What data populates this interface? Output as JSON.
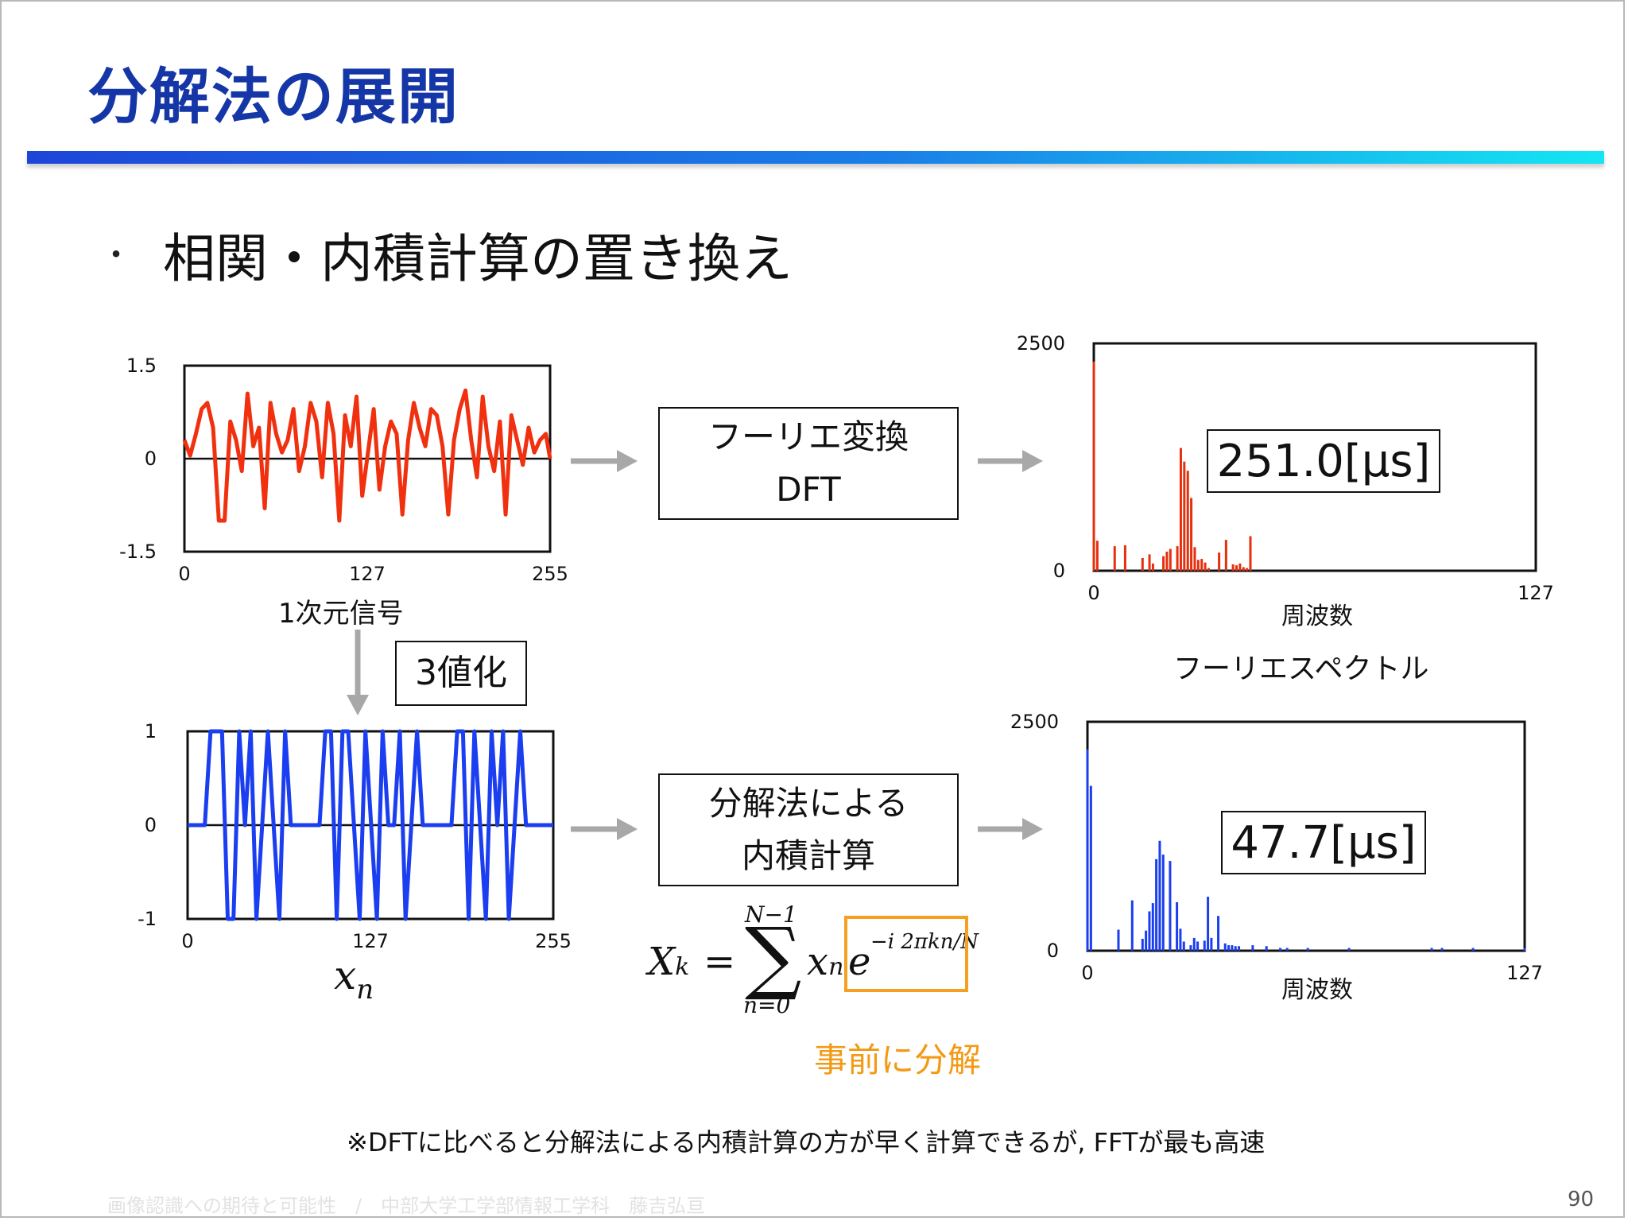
{
  "slide": {
    "title": "分解法の展開",
    "bullet": "相関・内積計算の置き換え",
    "bullet_marker": "・",
    "footnote": "※DFTに比べると分解法による内積計算の方が早く計算できるが, FFTが最も高速",
    "footer": "画像認識への期待と可能性　/　中部大学工学部情報工学科　藤吉弘亘",
    "page_number": "90"
  },
  "boxes": {
    "dft_line1": "フーリエ変換",
    "dft_line2": "DFT",
    "decomp_line1": "分解法による",
    "decomp_line2": "内積計算",
    "ternary": "3値化",
    "time_dft": "251.0[μs]",
    "time_decomp": "47.7[μs]",
    "predecompose": "事前に分解"
  },
  "labels": {
    "signal_caption": "1次元信号",
    "xn_caption": "x",
    "xn_sub": "n",
    "freq_label_top": "周波数",
    "freq_label_bottom": "周波数",
    "spectrum_caption": "フーリエスペクトル"
  },
  "formula": {
    "lhs": "X",
    "lhs_sub": "k",
    "eq": "=",
    "sum_top": "N−1",
    "sum_bottom": "n=0",
    "term": "x",
    "term_sub": "n",
    "exp_base": "e",
    "exp_sup": "−i 2πkn/N"
  },
  "colors": {
    "title": "#1536a6",
    "signal": "#f0300e",
    "ternary": "#1a3ef0",
    "spectrum_dft": "#e5300e",
    "spectrum_decomp": "#1a3ef0",
    "highlight": "#f5a020",
    "arrow": "#a8a8a8"
  },
  "chart_data": [
    {
      "type": "line",
      "name_hint": "signal",
      "x_ticks": [
        "0",
        "127",
        "255"
      ],
      "y_ticks": [
        "1.5",
        "0",
        "-1.5"
      ],
      "xlim": [
        0,
        255
      ],
      "ylim": [
        -1.5,
        1.5
      ],
      "baseline": 0,
      "x": [
        0,
        4,
        8,
        12,
        16,
        20,
        24,
        28,
        32,
        36,
        40,
        44,
        48,
        52,
        56,
        60,
        64,
        68,
        72,
        76,
        80,
        84,
        88,
        92,
        96,
        100,
        104,
        108,
        112,
        116,
        120,
        124,
        128,
        132,
        136,
        140,
        144,
        148,
        152,
        156,
        160,
        164,
        168,
        172,
        176,
        180,
        184,
        188,
        192,
        196,
        200,
        204,
        208,
        212,
        216,
        220,
        224,
        228,
        232,
        236,
        240,
        244,
        248,
        252,
        255
      ],
      "y": [
        0.3,
        0.05,
        0.4,
        0.8,
        0.9,
        0.5,
        -1.0,
        -1.0,
        0.6,
        0.3,
        -0.2,
        1.05,
        0.2,
        0.5,
        -0.8,
        0.9,
        0.4,
        0.1,
        0.3,
        0.8,
        -0.2,
        0.2,
        0.9,
        0.6,
        -0.3,
        0.9,
        0.4,
        -1.0,
        0.7,
        0.2,
        1.0,
        -0.6,
        0.1,
        0.8,
        -0.5,
        0.2,
        0.6,
        0.4,
        -0.9,
        0.3,
        0.9,
        0.5,
        0.2,
        0.8,
        0.7,
        0.2,
        -0.9,
        0.3,
        0.8,
        1.1,
        0.3,
        -0.3,
        1.0,
        0.2,
        -0.2,
        0.6,
        -0.9,
        0.7,
        0.3,
        -0.1,
        0.5,
        0.1,
        0.3,
        0.4,
        0.0
      ]
    },
    {
      "type": "bar",
      "name_hint": "dft_spectrum",
      "x_ticks": [
        "0",
        "127"
      ],
      "y_ticks": [
        "2500",
        "0"
      ],
      "xlim": [
        0,
        127
      ],
      "ylim": [
        0,
        2500
      ],
      "x": [
        0,
        1,
        6,
        9,
        14,
        16,
        17,
        20,
        21,
        22,
        24,
        25,
        26,
        27,
        28,
        29,
        30,
        31,
        32,
        33,
        36,
        38,
        40,
        41,
        42,
        43,
        44,
        45
      ],
      "values": [
        2300,
        330,
        270,
        280,
        140,
        180,
        80,
        160,
        210,
        240,
        270,
        1350,
        1200,
        1100,
        800,
        260,
        120,
        130,
        90,
        30,
        200,
        340,
        70,
        60,
        80,
        40,
        30,
        380
      ]
    },
    {
      "type": "line",
      "name_hint": "ternary_signal",
      "x_ticks": [
        "0",
        "127",
        "255"
      ],
      "y_ticks": [
        "1",
        "0",
        "-1"
      ],
      "xlim": [
        0,
        255
      ],
      "ylim": [
        -1,
        1
      ],
      "baseline": 0,
      "x": [
        0,
        4,
        8,
        12,
        16,
        20,
        24,
        28,
        32,
        36,
        40,
        44,
        48,
        52,
        56,
        60,
        64,
        68,
        72,
        76,
        80,
        84,
        88,
        92,
        96,
        100,
        104,
        108,
        112,
        116,
        120,
        124,
        128,
        132,
        136,
        140,
        144,
        148,
        152,
        156,
        160,
        164,
        168,
        172,
        176,
        180,
        184,
        188,
        192,
        196,
        200,
        204,
        208,
        212,
        216,
        220,
        224,
        228,
        232,
        236,
        240,
        244,
        248,
        252,
        255
      ],
      "y": [
        0,
        0,
        0,
        0,
        1,
        1,
        1,
        -1,
        -1,
        1,
        0,
        1,
        -1,
        0,
        1,
        0,
        -1,
        1,
        0,
        0,
        0,
        0,
        0,
        0,
        1,
        1,
        -1,
        1,
        1,
        0,
        -1,
        1,
        0,
        -1,
        1,
        0,
        0,
        1,
        -1,
        0,
        1,
        0,
        0,
        0,
        0,
        0,
        0,
        1,
        1,
        -1,
        1,
        0,
        -1,
        1,
        0,
        1,
        -1,
        0,
        1,
        0,
        0,
        0,
        0,
        0,
        0
      ]
    },
    {
      "type": "bar",
      "name_hint": "decomp_spectrum",
      "x_ticks": [
        "0",
        "127"
      ],
      "y_ticks": [
        "2500",
        "0"
      ],
      "xlim": [
        0,
        127
      ],
      "ylim": [
        0,
        2500
      ],
      "x": [
        0,
        1,
        9,
        13,
        16,
        17,
        18,
        19,
        20,
        21,
        22,
        24,
        26,
        27,
        28,
        30,
        31,
        32,
        34,
        35,
        36,
        38,
        40,
        41,
        42,
        43,
        44,
        48,
        52,
        56,
        58,
        64,
        76,
        100,
        103,
        112,
        127
      ],
      "values": [
        2200,
        1800,
        230,
        550,
        130,
        220,
        430,
        520,
        1000,
        1200,
        1050,
        980,
        530,
        240,
        100,
        60,
        140,
        100,
        110,
        590,
        140,
        380,
        80,
        60,
        60,
        50,
        50,
        60,
        50,
        30,
        30,
        30,
        30,
        30,
        30,
        30,
        30
      ]
    }
  ]
}
